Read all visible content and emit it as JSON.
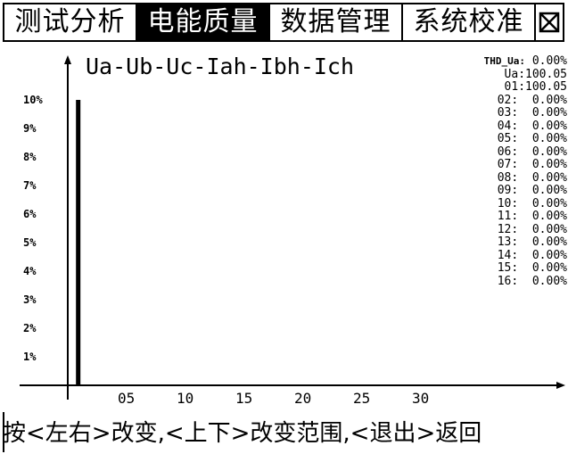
{
  "tabs": [
    {
      "label": "测试分析",
      "active": false
    },
    {
      "label": "电能质量",
      "active": true
    },
    {
      "label": "数据管理",
      "active": false
    },
    {
      "label": "系统校准",
      "active": false
    }
  ],
  "close_icon": "close-box-icon",
  "plot": {
    "title": "Ua-Ub-Uc-Iah-Ibh-Ich"
  },
  "chart_data": {
    "type": "bar",
    "title": "Ua-Ub-Uc-Iah-Ibh-Ich",
    "xlabel": "",
    "ylabel": "",
    "y_ticks": [
      "1%",
      "2%",
      "3%",
      "4%",
      "5%",
      "6%",
      "7%",
      "8%",
      "9%",
      "10%"
    ],
    "x_ticks": [
      "05",
      "10",
      "15",
      "20",
      "25",
      "30"
    ],
    "ylim": [
      0,
      10
    ],
    "xlim": [
      0,
      32
    ],
    "series": [
      {
        "values": [
          {
            "x": 1,
            "y": 10
          }
        ]
      }
    ]
  },
  "info": {
    "thd_label": "THD_Ua:",
    "thd_value": "0.00%",
    "fundamental": "Ua:100.05",
    "harmonics": [
      "01:100.05",
      "02:  0.00%",
      "03:  0.00%",
      "04:  0.00%",
      "05:  0.00%",
      "06:  0.00%",
      "07:  0.00%",
      "08:  0.00%",
      "09:  0.00%",
      "10:  0.00%",
      "11:  0.00%",
      "12:  0.00%",
      "13:  0.00%",
      "14:  0.00%",
      "15:  0.00%",
      "16:  0.00%"
    ]
  },
  "footer": {
    "hint": "按<左右>改变,<上下>改变范围,<退出>返回"
  }
}
